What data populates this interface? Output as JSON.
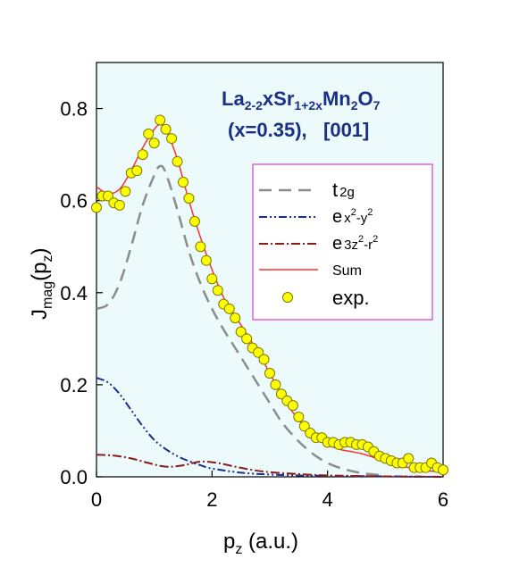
{
  "chart_data": {
    "type": "line",
    "xlim": [
      0,
      6
    ],
    "ylim": [
      0,
      0.9
    ],
    "xticks": [
      "0",
      "2",
      "4",
      "6"
    ],
    "yticks": [
      "0.0",
      "0.2",
      "0.4",
      "0.6",
      "0.8"
    ],
    "xlabel": {
      "base": "p",
      "sub": "z",
      "rest": " (a.u.)"
    },
    "ylabel": {
      "base": "J",
      "sub1": "mag",
      "mid": "(p",
      "sub2": "z",
      "end": ")"
    },
    "annotation": {
      "line1": {
        "a": "La",
        "a_sub": "2-2",
        "b": "xSr",
        "b_sub": "1+2x",
        "c": "Mn",
        "c_sub": "2",
        "d": "O",
        "d_sub": "7"
      },
      "line2": "(x=0.35),   [001]"
    },
    "legend": {
      "t2g": {
        "main": "t",
        "sub": "2g"
      },
      "ex2y2": {
        "main": "e",
        "sub": "x",
        "sup1": "2",
        "mid": "-y",
        "sup2": "2"
      },
      "e3z2r2": {
        "main": "e",
        "sub": "3z",
        "sup1": "2",
        "mid": "-r",
        "sup2": "2"
      },
      "sum": "Sum",
      "exp": "exp."
    },
    "colors": {
      "plot_bg": "#ecfafb",
      "t2g": "#8c8c8c",
      "ex2y2": "#1b2d8a",
      "e3z2r2": "#8b1a1a",
      "sum": "#ff3030",
      "exp_fill": "#ffff00",
      "exp_stroke": "#7a7a00",
      "legend_border": "#d63cd6",
      "annotation": "#1a2f86"
    },
    "series": [
      {
        "key": "t2g",
        "style": "dashed",
        "x": [
          0,
          0.2,
          0.4,
          0.6,
          0.8,
          1.0,
          1.1,
          1.2,
          1.4,
          1.6,
          1.8,
          2.0,
          2.2,
          2.4,
          2.6,
          2.8,
          3.0,
          3.2,
          3.4,
          3.6,
          3.8,
          4.0,
          4.2,
          4.4,
          4.6,
          4.8,
          5.0
        ],
        "y": [
          0.365,
          0.375,
          0.42,
          0.5,
          0.59,
          0.655,
          0.675,
          0.66,
          0.58,
          0.49,
          0.42,
          0.365,
          0.32,
          0.28,
          0.24,
          0.2,
          0.16,
          0.12,
          0.09,
          0.065,
          0.045,
          0.03,
          0.02,
          0.013,
          0.008,
          0.005,
          0.003
        ]
      },
      {
        "key": "ex2y2",
        "style": "dashdotdot",
        "x": [
          0,
          0.2,
          0.4,
          0.6,
          0.8,
          1.0,
          1.2,
          1.4,
          1.6,
          1.8,
          2.0,
          2.5,
          3.0,
          3.5,
          4.0,
          5.0,
          6.0
        ],
        "y": [
          0.215,
          0.205,
          0.18,
          0.145,
          0.11,
          0.08,
          0.06,
          0.045,
          0.034,
          0.025,
          0.018,
          0.009,
          0.005,
          0.003,
          0.002,
          0.001,
          0.0
        ]
      },
      {
        "key": "e3z2r2",
        "style": "dashdot",
        "x": [
          0,
          0.3,
          0.6,
          0.9,
          1.2,
          1.5,
          1.8,
          2.1,
          2.4,
          2.7,
          3.0,
          3.5,
          4.0,
          5.0,
          6.0
        ],
        "y": [
          0.048,
          0.046,
          0.04,
          0.03,
          0.022,
          0.025,
          0.033,
          0.03,
          0.022,
          0.015,
          0.01,
          0.006,
          0.003,
          0.001,
          0.0
        ]
      },
      {
        "key": "sum",
        "style": "solid",
        "x": [
          0,
          0.2,
          0.4,
          0.6,
          0.8,
          1.0,
          1.1,
          1.2,
          1.4,
          1.6,
          1.8,
          2.0,
          2.2,
          2.4,
          2.6,
          2.8,
          3.0,
          3.2,
          3.4,
          3.6,
          3.8,
          4.0,
          4.2,
          4.4,
          4.6,
          4.8,
          5.0,
          5.2,
          5.4,
          5.6,
          5.8,
          6.0
        ],
        "y": [
          0.63,
          0.615,
          0.625,
          0.665,
          0.715,
          0.755,
          0.765,
          0.755,
          0.69,
          0.6,
          0.52,
          0.45,
          0.39,
          0.35,
          0.31,
          0.27,
          0.225,
          0.18,
          0.14,
          0.11,
          0.085,
          0.07,
          0.06,
          0.055,
          0.05,
          0.042,
          0.035,
          0.025,
          0.02,
          0.015,
          0.012,
          0.01
        ]
      }
    ],
    "exp_points": {
      "x": [
        0.0,
        0.1,
        0.2,
        0.3,
        0.4,
        0.5,
        0.6,
        0.7,
        0.8,
        0.9,
        1.0,
        1.1,
        1.2,
        1.3,
        1.4,
        1.5,
        1.6,
        1.7,
        1.8,
        1.9,
        2.0,
        2.1,
        2.2,
        2.3,
        2.4,
        2.5,
        2.6,
        2.7,
        2.8,
        2.9,
        3.0,
        3.1,
        3.2,
        3.3,
        3.4,
        3.5,
        3.6,
        3.7,
        3.8,
        3.9,
        4.0,
        4.1,
        4.2,
        4.3,
        4.4,
        4.5,
        4.6,
        4.7,
        4.8,
        4.9,
        5.0,
        5.1,
        5.2,
        5.3,
        5.4,
        5.5,
        5.6,
        5.7,
        5.8,
        5.9,
        6.0
      ],
      "y": [
        0.585,
        0.61,
        0.61,
        0.595,
        0.59,
        0.62,
        0.66,
        0.665,
        0.7,
        0.745,
        0.725,
        0.775,
        0.755,
        0.735,
        0.685,
        0.64,
        0.605,
        0.555,
        0.5,
        0.47,
        0.43,
        0.405,
        0.375,
        0.365,
        0.345,
        0.315,
        0.3,
        0.28,
        0.27,
        0.255,
        0.225,
        0.2,
        0.18,
        0.165,
        0.155,
        0.13,
        0.11,
        0.095,
        0.085,
        0.085,
        0.075,
        0.075,
        0.07,
        0.075,
        0.075,
        0.07,
        0.07,
        0.065,
        0.055,
        0.045,
        0.04,
        0.035,
        0.03,
        0.03,
        0.04,
        0.02,
        0.02,
        0.02,
        0.03,
        0.02,
        0.015
      ]
    }
  }
}
